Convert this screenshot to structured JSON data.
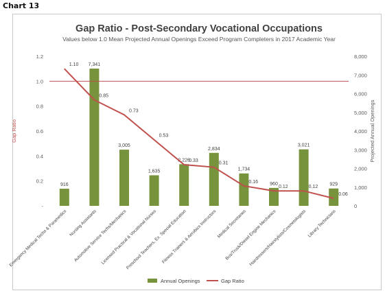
{
  "page_label": "Chart 13",
  "chart_data": {
    "type": "bar",
    "title": "Gap Ratio - Post-Secondary Vocational Occupations",
    "subtitle": "Values below 1.0 Mean Projected Annual Openings Exceed Program Completers  in 2017 Academic Year",
    "ylabel_left": "Gap Ratio",
    "ylabel_right": "Projected Annual Openings",
    "xlabel": "",
    "ylim_left": [
      0,
      1.2
    ],
    "ylim_right": [
      0,
      8000
    ],
    "left_ticks": [
      "-",
      "0.2",
      "0.4",
      "0.6",
      "0.8",
      "1.0",
      "1.2"
    ],
    "right_ticks": [
      "0",
      "1,000",
      "2,000",
      "3,000",
      "4,000",
      "5,000",
      "6,000",
      "7,000",
      "8,000"
    ],
    "reference_line": 1.0,
    "legend_position": "bottom",
    "categories": [
      "Emergency Medical Techs & Paramedics",
      "Nursing Assistants",
      "Automotive Service Techs/Mechanics",
      "Licensed Practical & Vocational Nurses",
      "Preschool Teachers, Ex. Special Education",
      "Fitness Trainers & Aerobics Instructors",
      "Medical Secretaries",
      "Bus/Truck/Diesel Engine Mechanics",
      "Hairdressers/Hairstylists/Cosmetologists",
      "Library Technicians"
    ],
    "series": [
      {
        "name": "Annual Openings",
        "type": "bar",
        "axis": "right",
        "color": "#77933c",
        "values": [
          916,
          7341,
          3005,
          1635,
          2226,
          2834,
          1734,
          960,
          3021,
          929
        ],
        "labels": [
          "916",
          "7,341",
          "3,005",
          "1,635",
          "2,226",
          "2,834",
          "1,734",
          "960",
          "3,021",
          "929"
        ]
      },
      {
        "name": "Gap Ratio",
        "type": "line",
        "axis": "left",
        "color": "#c0504d",
        "values": [
          1.1,
          0.85,
          0.73,
          0.53,
          0.33,
          0.31,
          0.16,
          0.12,
          0.12,
          0.06
        ],
        "labels": [
          "1.10",
          "0.85",
          "0.73",
          "0.53",
          "0.33",
          "0.31",
          "0.16",
          "0.12",
          "0.12",
          "0.06"
        ]
      }
    ]
  }
}
